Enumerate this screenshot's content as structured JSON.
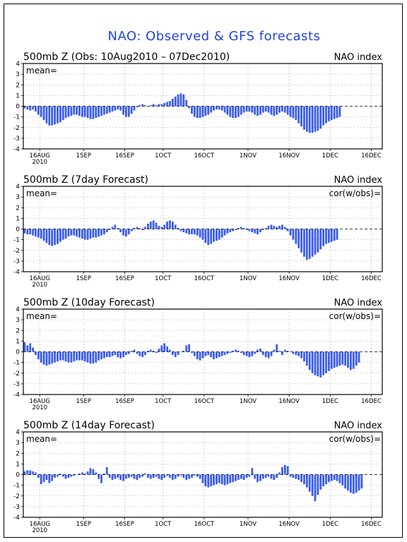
{
  "title": "NAO: Observed & GFS forecasts",
  "chart_data": [
    {
      "type": "bar",
      "title": "500mb Z (Obs: 10Aug2010 – 07Dec2010)",
      "right_label": "NAO index",
      "inner_labels": [
        "mean="
      ],
      "ylim": [
        -4,
        4
      ],
      "yticks": [
        "4",
        "3",
        "2",
        "1",
        "0",
        "-1",
        "-2",
        "-3",
        "-4"
      ],
      "xticks": [
        {
          "day": 6,
          "label": "16AUG",
          "sub": "2010"
        },
        {
          "day": 22,
          "label": "1SEP"
        },
        {
          "day": 37,
          "label": "16SEP"
        },
        {
          "day": 51,
          "label": "1OCT"
        },
        {
          "day": 66,
          "label": "16OCT"
        },
        {
          "day": 82,
          "label": "1NOV"
        },
        {
          "day": 97,
          "label": "16NOV"
        },
        {
          "day": 112,
          "label": "1DEC"
        },
        {
          "day": 127,
          "label": "16DEC"
        }
      ],
      "x_range_days": [
        0,
        131
      ],
      "grid": true,
      "values": [
        -0.2,
        -0.3,
        -0.4,
        -0.3,
        -0.5,
        -0.8,
        -1.0,
        -1.3,
        -1.6,
        -1.8,
        -1.8,
        -1.7,
        -1.6,
        -1.5,
        -1.3,
        -1.1,
        -1.0,
        -0.9,
        -0.8,
        -0.8,
        -0.9,
        -1.0,
        -1.0,
        -1.1,
        -1.2,
        -1.2,
        -1.1,
        -1.0,
        -0.9,
        -0.8,
        -0.7,
        -0.6,
        -0.5,
        -0.4,
        -0.3,
        -0.4,
        -0.8,
        -1.0,
        -1.0,
        -0.7,
        -0.4,
        -0.1,
        0.1,
        0.2,
        0.1,
        0.0,
        0.1,
        0.2,
        0.1,
        0.2,
        0.2,
        0.3,
        0.4,
        0.5,
        0.7,
        0.9,
        1.1,
        1.2,
        1.1,
        0.6,
        -0.2,
        -0.7,
        -1.0,
        -1.1,
        -1.1,
        -1.0,
        -0.9,
        -0.8,
        -0.6,
        -0.4,
        -0.3,
        -0.3,
        -0.4,
        -0.6,
        -0.8,
        -1.0,
        -1.1,
        -1.1,
        -1.0,
        -0.8,
        -0.6,
        -0.5,
        -0.5,
        -0.6,
        -0.8,
        -0.9,
        -0.8,
        -0.6,
        -0.5,
        -0.6,
        -0.8,
        -0.9,
        -0.8,
        -0.6,
        -0.5,
        -0.6,
        -0.8,
        -1.0,
        -1.1,
        -1.3,
        -1.6,
        -1.9,
        -2.2,
        -2.4,
        -2.5,
        -2.5,
        -2.4,
        -2.3,
        -2.1,
        -1.8,
        -1.6,
        -1.4,
        -1.3,
        -1.2,
        -1.1,
        -1.0
      ]
    },
    {
      "type": "bar",
      "title": "500mb Z (7day Forecast)",
      "right_label": "NAO index",
      "inner_labels": [
        "mean=",
        "cor(w/obs)="
      ],
      "ylim": [
        -4,
        4
      ],
      "yticks": [
        "4",
        "3",
        "2",
        "1",
        "0",
        "-1",
        "-2",
        "-3",
        "-4"
      ],
      "xticks": [
        {
          "day": 6,
          "label": "16AUG",
          "sub": "2010"
        },
        {
          "day": 22,
          "label": "1SEP"
        },
        {
          "day": 37,
          "label": "16SEP"
        },
        {
          "day": 51,
          "label": "1OCT"
        },
        {
          "day": 66,
          "label": "16OCT"
        },
        {
          "day": 82,
          "label": "1NOV"
        },
        {
          "day": 97,
          "label": "16NOV"
        },
        {
          "day": 112,
          "label": "1DEC"
        },
        {
          "day": 127,
          "label": "16DEC"
        }
      ],
      "x_range_days": [
        0,
        131
      ],
      "grid": true,
      "values": [
        -0.4,
        -0.5,
        -0.5,
        -0.6,
        -0.7,
        -0.8,
        -0.9,
        -1.1,
        -1.3,
        -1.5,
        -1.6,
        -1.5,
        -1.4,
        -1.2,
        -1.0,
        -0.9,
        -0.7,
        -0.6,
        -0.6,
        -0.7,
        -0.8,
        -0.9,
        -1.0,
        -1.0,
        -0.9,
        -0.8,
        -0.8,
        -0.7,
        -0.6,
        -0.5,
        -0.3,
        -0.1,
        0.2,
        0.4,
        0.1,
        -0.3,
        -0.6,
        -0.7,
        -0.5,
        -0.2,
        0.1,
        0.2,
        0.1,
        -0.1,
        0.2,
        0.5,
        0.7,
        0.8,
        0.6,
        0.3,
        0.2,
        0.4,
        0.7,
        0.8,
        0.7,
        0.4,
        0.1,
        -0.2,
        -0.3,
        -0.4,
        -0.5,
        -0.5,
        -0.5,
        -0.6,
        -0.8,
        -1.0,
        -1.3,
        -1.5,
        -1.4,
        -1.2,
        -1.1,
        -1.0,
        -0.8,
        -0.6,
        -0.4,
        -0.3,
        -0.2,
        -0.1,
        0.1,
        0.2,
        0.1,
        -0.1,
        -0.2,
        -0.3,
        -0.4,
        -0.5,
        -0.3,
        -0.1,
        0.1,
        0.3,
        0.4,
        0.3,
        0.2,
        0.3,
        0.4,
        0.2,
        -0.2,
        -0.6,
        -1.0,
        -1.4,
        -1.8,
        -2.2,
        -2.6,
        -2.9,
        -2.8,
        -2.6,
        -2.4,
        -2.2,
        -1.9,
        -1.6,
        -1.4,
        -1.3,
        -1.2,
        -1.1,
        -1.0
      ]
    },
    {
      "type": "bar",
      "title": "500mb Z (10day Forecast)",
      "right_label": "NAO index",
      "inner_labels": [
        "mean=",
        "cor(w/obs)="
      ],
      "ylim": [
        -4,
        4
      ],
      "yticks": [
        "4",
        "3",
        "2",
        "1",
        "0",
        "-1",
        "-2",
        "-3",
        "-4"
      ],
      "xticks": [
        {
          "day": 6,
          "label": "16AUG",
          "sub": "2010"
        },
        {
          "day": 22,
          "label": "1SEP"
        },
        {
          "day": 37,
          "label": "16SEP"
        },
        {
          "day": 51,
          "label": "1OCT"
        },
        {
          "day": 66,
          "label": "16OCT"
        },
        {
          "day": 82,
          "label": "1NOV"
        },
        {
          "day": 97,
          "label": "16NOV"
        },
        {
          "day": 112,
          "label": "1DEC"
        },
        {
          "day": 127,
          "label": "16DEC"
        }
      ],
      "x_range_days": [
        0,
        131
      ],
      "grid": true,
      "values": [
        0.9,
        0.6,
        0.8,
        0.4,
        -0.3,
        -0.7,
        -1.0,
        -1.2,
        -1.3,
        -1.2,
        -1.1,
        -1.0,
        -0.9,
        -0.8,
        -0.8,
        -0.9,
        -1.0,
        -1.0,
        -0.9,
        -0.8,
        -0.8,
        -0.8,
        -0.9,
        -1.0,
        -1.1,
        -1.1,
        -1.0,
        -0.8,
        -0.7,
        -0.6,
        -0.5,
        -0.5,
        -0.4,
        -0.3,
        -0.5,
        -0.6,
        -0.5,
        -0.3,
        -0.2,
        0.1,
        0.2,
        -0.2,
        -0.4,
        -0.5,
        -0.3,
        0.1,
        0.2,
        0.1,
        -0.1,
        0.3,
        0.6,
        0.8,
        0.5,
        0.2,
        -0.3,
        -0.5,
        -0.3,
        0.0,
        0.1,
        0.6,
        0.7,
        -0.1,
        -0.4,
        -0.7,
        -0.8,
        -0.6,
        -0.4,
        -0.3,
        -0.5,
        -0.7,
        -0.6,
        -0.5,
        -0.4,
        -0.3,
        -0.2,
        -0.1,
        0.1,
        0.2,
        0.1,
        -0.1,
        -0.3,
        -0.4,
        -0.5,
        -0.4,
        -0.2,
        0.2,
        0.3,
        -0.3,
        -0.5,
        -0.6,
        -0.4,
        0.2,
        0.7,
        0.1,
        -0.3,
        0.2,
        0.1,
        0.0,
        -0.2,
        -0.3,
        -0.4,
        -0.6,
        -0.9,
        -1.3,
        -1.7,
        -2.0,
        -2.2,
        -2.3,
        -2.4,
        -2.2,
        -2.0,
        -1.8,
        -1.6,
        -1.5,
        -1.4,
        -1.3,
        -1.2,
        -1.3,
        -1.5,
        -1.7,
        -1.6,
        -1.3,
        -1.0
      ]
    },
    {
      "type": "bar",
      "title": "500mb Z (14day Forecast)",
      "right_label": "NAO index",
      "inner_labels": [
        "mean=",
        "cor(w/obs)="
      ],
      "ylim": [
        -4,
        4
      ],
      "yticks": [
        "4",
        "3",
        "2",
        "1",
        "0",
        "-1",
        "-2",
        "-3",
        "-4"
      ],
      "xticks": [
        {
          "day": 6,
          "label": "16AUG",
          "sub": "2010"
        },
        {
          "day": 22,
          "label": "1SEP"
        },
        {
          "day": 37,
          "label": "16SEP"
        },
        {
          "day": 51,
          "label": "1OCT"
        },
        {
          "day": 66,
          "label": "16OCT"
        },
        {
          "day": 82,
          "label": "1NOV"
        },
        {
          "day": 97,
          "label": "16NOV"
        },
        {
          "day": 112,
          "label": "1DEC"
        },
        {
          "day": 127,
          "label": "16DEC"
        }
      ],
      "x_range_days": [
        0,
        131
      ],
      "grid": true,
      "values": [
        0.3,
        0.4,
        0.4,
        0.3,
        0.2,
        -0.3,
        -0.9,
        -0.7,
        -0.5,
        -0.8,
        -0.6,
        -0.3,
        -0.2,
        0.1,
        -0.2,
        -0.4,
        -0.3,
        -0.2,
        -0.1,
        0.0,
        0.1,
        0.2,
        0.1,
        0.3,
        0.6,
        0.5,
        0.2,
        -0.4,
        -0.8,
        0.1,
        0.7,
        -0.3,
        -0.5,
        -0.4,
        -0.3,
        -0.5,
        -0.6,
        -0.4,
        -0.3,
        -0.2,
        -0.4,
        -0.5,
        -0.3,
        -0.2,
        0.1,
        -0.3,
        -0.4,
        -0.3,
        -0.2,
        -0.4,
        -0.5,
        -0.3,
        -0.1,
        -0.3,
        -0.5,
        -0.4,
        -0.2,
        -0.1,
        -0.3,
        -0.5,
        -0.4,
        -0.3,
        -0.1,
        -0.2,
        -0.4,
        -0.8,
        -1.1,
        -1.2,
        -1.1,
        -1.0,
        -0.9,
        -0.8,
        -0.9,
        -1.0,
        -0.9,
        -0.8,
        -0.7,
        -0.6,
        -0.5,
        -0.4,
        -0.5,
        -0.3,
        -0.2,
        0.6,
        -0.4,
        -0.7,
        -0.6,
        -0.4,
        -0.3,
        -0.2,
        -0.4,
        -0.5,
        -0.3,
        0.2,
        0.7,
        0.9,
        0.8,
        -0.2,
        -0.3,
        -0.4,
        -0.5,
        -0.7,
        -0.9,
        -1.2,
        -1.6,
        -2.0,
        -2.5,
        -1.9,
        -1.4,
        -1.1,
        -0.9,
        -0.7,
        -0.6,
        -0.5,
        -0.6,
        -0.8,
        -1.0,
        -1.3,
        -1.5,
        -1.7,
        -1.8,
        -1.7,
        -1.5,
        -1.3
      ]
    }
  ]
}
